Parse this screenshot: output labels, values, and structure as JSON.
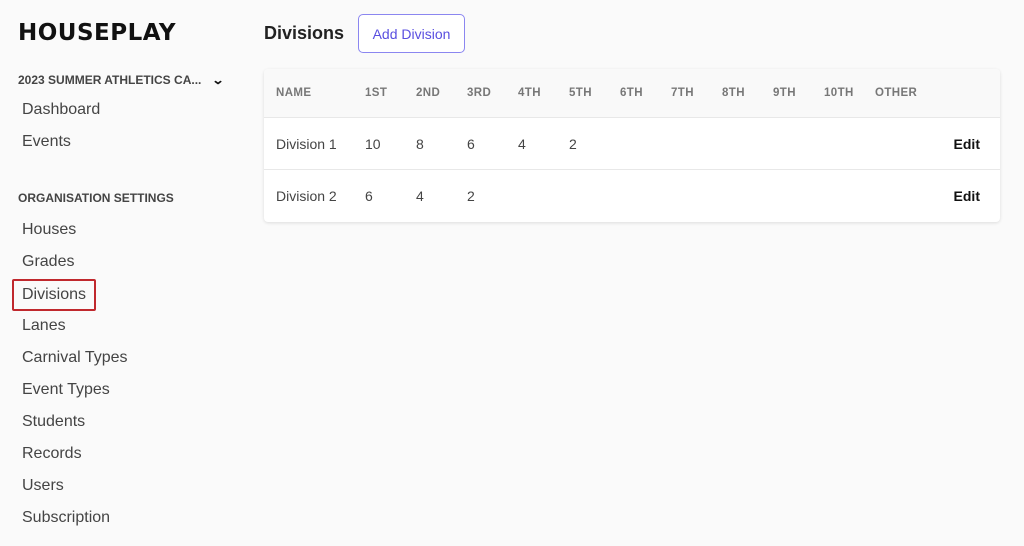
{
  "brand": "HOUSEPLAY",
  "carnival_selector": {
    "label": "2023 SUMMER ATHLETICS CA...",
    "icon": "chevron-down-icon"
  },
  "nav_main": [
    "Dashboard",
    "Events"
  ],
  "org_section": "ORGANISATION SETTINGS",
  "nav_org": [
    "Houses",
    "Grades",
    "Divisions",
    "Lanes",
    "Carnival Types",
    "Event Types",
    "Students",
    "Records",
    "Users",
    "Subscription"
  ],
  "selected_nav": "Divisions",
  "page": {
    "title": "Divisions",
    "add_button": "Add Division"
  },
  "table": {
    "headers": [
      "NAME",
      "1ST",
      "2ND",
      "3RD",
      "4TH",
      "5TH",
      "6TH",
      "7TH",
      "8TH",
      "9TH",
      "10TH",
      "OTHER"
    ],
    "rows": [
      {
        "cells": [
          "Division 1",
          "10",
          "8",
          "6",
          "4",
          "2",
          "",
          "",
          "",
          "",
          "",
          ""
        ],
        "action": "Edit"
      },
      {
        "cells": [
          "Division 2",
          "6",
          "4",
          "2",
          "",
          "",
          "",
          "",
          "",
          "",
          "",
          ""
        ],
        "action": "Edit"
      }
    ]
  },
  "colors": {
    "accent": "#5a4fe0",
    "highlight": "#c0282d"
  }
}
